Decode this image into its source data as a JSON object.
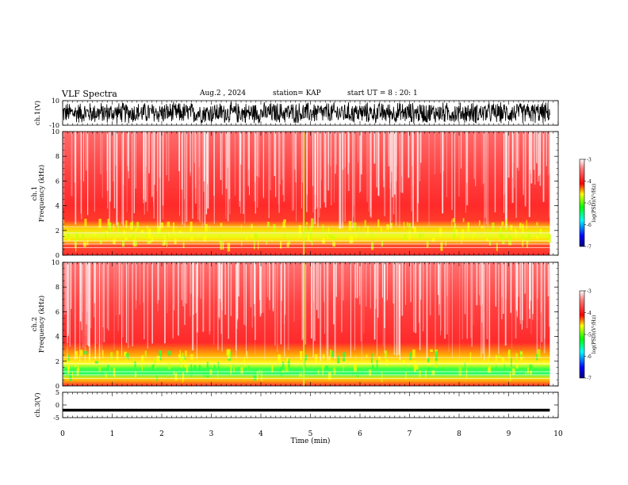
{
  "header": {
    "title": "VLF Spectra",
    "date": "Aug.2 , 2024",
    "station": "station= KAP",
    "start": "start UT = 8 : 20: 1"
  },
  "chart_data": [
    {
      "type": "line",
      "panel": "ch1-waveform",
      "ylabel": "ch.1(V)",
      "ylim": [
        -10,
        10
      ],
      "yticks": [
        "10",
        "-10"
      ],
      "xlim": [
        0,
        10
      ],
      "note_visual": "dense black waveform saturating between about -10 and +8 V"
    },
    {
      "type": "heatmap",
      "panel": "ch1-spectrogram",
      "ylabel": "ch.1\nFrequency (kHz)",
      "ylim": [
        0,
        10
      ],
      "yticks": [
        "0",
        "2",
        "4",
        "6",
        "8",
        "10"
      ],
      "xlim": [
        0,
        10
      ],
      "colorbar": {
        "label": "log(PSD)(V²/Hz)",
        "range": [
          -7,
          -3
        ],
        "ticks": [
          "-3",
          "-4",
          "-5",
          "-6",
          "-7"
        ],
        "colors": [
          "#000080",
          "#0000ff",
          "#00ffff",
          "#00ff00",
          "#ffff00",
          "#ff0000",
          "#ffffff"
        ]
      }
    },
    {
      "type": "heatmap",
      "panel": "ch2-spectrogram",
      "ylabel": "ch.2\nFrequency (kHz)",
      "ylim": [
        0,
        10
      ],
      "yticks": [
        "0",
        "2",
        "4",
        "6",
        "8",
        "10"
      ],
      "xlim": [
        0,
        10
      ],
      "colorbar": {
        "label": "log(PSD)(V²/Hz)",
        "range": [
          -7,
          -3
        ],
        "ticks": [
          "-3",
          "-4",
          "-5",
          "-6",
          "-7"
        ],
        "colors": [
          "#000080",
          "#0000ff",
          "#00ffff",
          "#00ff00",
          "#ffff00",
          "#ff0000",
          "#ffffff"
        ]
      }
    },
    {
      "type": "line",
      "panel": "ch3-waveform",
      "ylabel": "ch.3(V)",
      "ylim": [
        -5,
        5
      ],
      "yticks": [
        "5",
        "0",
        "-5"
      ],
      "xlim": [
        0,
        10
      ],
      "note_visual": "thick black band near -2 V"
    }
  ],
  "xaxis": {
    "label": "Time (min)",
    "ticks": [
      "0",
      "1",
      "2",
      "3",
      "4",
      "5",
      "6",
      "7",
      "8",
      "9",
      "10"
    ]
  }
}
